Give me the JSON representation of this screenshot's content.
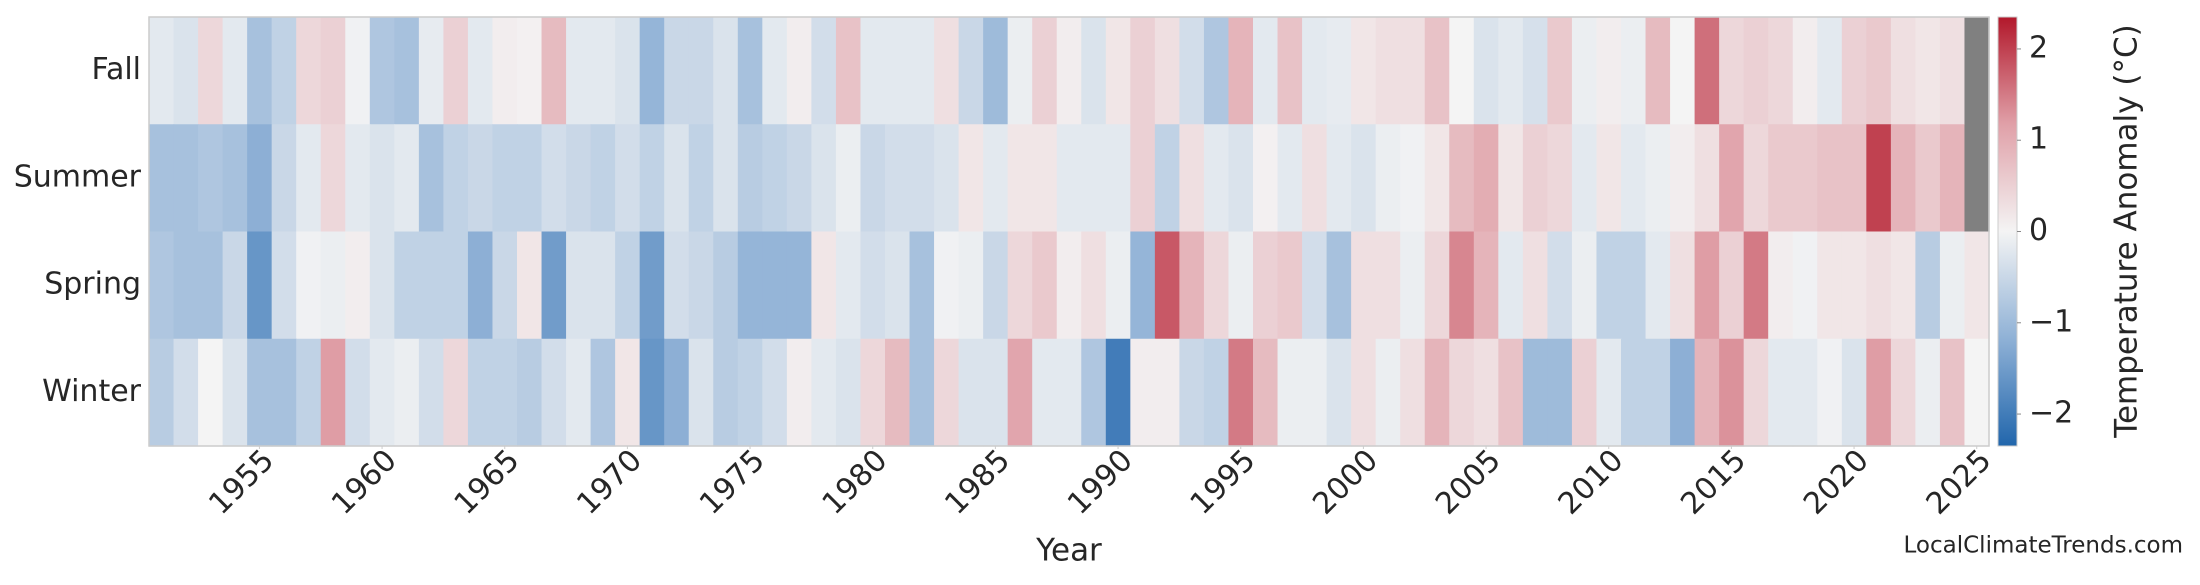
{
  "chart_data": {
    "type": "heatmap",
    "xlabel": "Year",
    "colorbar_label": "Temperature Anomaly (°C)",
    "watermark": "LocalClimateTrends.com",
    "x": [
      1951,
      1952,
      1953,
      1954,
      1955,
      1956,
      1957,
      1958,
      1959,
      1960,
      1961,
      1962,
      1963,
      1964,
      1965,
      1966,
      1967,
      1968,
      1969,
      1970,
      1971,
      1972,
      1973,
      1974,
      1975,
      1976,
      1977,
      1978,
      1979,
      1980,
      1981,
      1982,
      1983,
      1984,
      1985,
      1986,
      1987,
      1988,
      1989,
      1990,
      1991,
      1992,
      1993,
      1994,
      1995,
      1996,
      1997,
      1998,
      1999,
      2000,
      2001,
      2002,
      2003,
      2004,
      2005,
      2006,
      2007,
      2008,
      2009,
      2010,
      2011,
      2012,
      2013,
      2014,
      2015,
      2016,
      2017,
      2018,
      2019,
      2020,
      2021,
      2022,
      2023,
      2024,
      2025
    ],
    "y": [
      "Fall",
      "Summer",
      "Spring",
      "Winter"
    ],
    "z": [
      [
        -0.2,
        -0.3,
        0.4,
        -0.2,
        -0.9,
        -0.6,
        0.4,
        0.5,
        -0.05,
        -0.8,
        -0.9,
        -0.15,
        0.5,
        -0.2,
        0.1,
        0.05,
        0.8,
        -0.2,
        -0.2,
        -0.3,
        -1.1,
        -0.5,
        -0.5,
        -0.3,
        -0.9,
        -0.2,
        0.1,
        -0.4,
        0.7,
        -0.2,
        -0.2,
        -0.2,
        0.3,
        -0.5,
        -1.0,
        -0.1,
        0.5,
        0.1,
        -0.3,
        0.2,
        0.5,
        0.3,
        -0.4,
        -0.8,
        0.9,
        -0.2,
        0.7,
        -0.2,
        -0.15,
        0.2,
        0.3,
        0.3,
        0.7,
        0.0,
        -0.3,
        -0.2,
        -0.35,
        0.6,
        -0.1,
        0.1,
        -0.1,
        0.8,
        0.0,
        1.6,
        0.4,
        0.5,
        0.4,
        0.1,
        -0.2,
        0.5,
        0.6,
        0.3,
        0.2,
        0.3,
        null
      ],
      [
        -0.9,
        -0.9,
        -0.8,
        -0.9,
        -1.2,
        -0.5,
        -0.2,
        0.4,
        -0.2,
        -0.3,
        -0.2,
        -0.9,
        -0.6,
        -0.5,
        -0.6,
        -0.6,
        -0.4,
        -0.5,
        -0.6,
        -0.4,
        -0.6,
        -0.3,
        -0.6,
        -0.3,
        -0.7,
        -0.6,
        -0.5,
        -0.3,
        -0.1,
        -0.5,
        -0.4,
        -0.4,
        -0.3,
        0.2,
        -0.2,
        0.2,
        0.2,
        -0.2,
        -0.2,
        -0.2,
        0.5,
        -0.6,
        0.3,
        -0.2,
        -0.3,
        0.05,
        -0.2,
        0.3,
        -0.2,
        -0.3,
        -0.1,
        -0.05,
        0.2,
        0.8,
        1.0,
        0.2,
        0.5,
        0.4,
        -0.2,
        0.2,
        -0.2,
        -0.1,
        0.1,
        0.3,
        1.1,
        0.4,
        0.6,
        0.6,
        0.7,
        0.7,
        2.0,
        0.9,
        0.6,
        0.9,
        null
      ],
      [
        -0.8,
        -0.9,
        -0.9,
        -0.5,
        -1.6,
        -0.4,
        -0.05,
        -0.1,
        0.1,
        -0.3,
        -0.6,
        -0.6,
        -0.6,
        -1.2,
        -0.5,
        0.2,
        -1.5,
        -0.3,
        -0.3,
        -0.6,
        -1.5,
        -0.4,
        -0.5,
        -0.7,
        -1.1,
        -1.1,
        -1.1,
        0.2,
        -0.2,
        -0.4,
        -0.3,
        -0.9,
        -0.05,
        -0.1,
        -0.5,
        0.4,
        0.6,
        0.1,
        0.3,
        -0.1,
        -1.1,
        1.8,
        0.9,
        0.4,
        -0.1,
        0.5,
        0.6,
        -0.4,
        -0.9,
        0.3,
        0.3,
        -0.1,
        0.4,
        1.4,
        0.9,
        -0.2,
        0.3,
        -0.4,
        -0.1,
        -0.6,
        -0.6,
        -0.2,
        0.3,
        1.2,
        0.5,
        1.5,
        0.1,
        -0.05,
        0.2,
        0.2,
        0.3,
        0.2,
        -0.7,
        -0.1,
        0.2
      ],
      [
        -0.7,
        -0.4,
        0.0,
        -0.3,
        -0.9,
        -0.9,
        -0.6,
        1.2,
        -0.4,
        -0.2,
        -0.1,
        -0.4,
        0.4,
        -0.6,
        -0.6,
        -0.7,
        -0.4,
        -0.2,
        -0.8,
        0.2,
        -1.6,
        -1.2,
        -0.3,
        -0.7,
        -0.6,
        -0.4,
        0.1,
        -0.2,
        -0.3,
        0.4,
        0.8,
        -0.9,
        0.4,
        -0.3,
        -0.3,
        1.1,
        -0.2,
        -0.2,
        -0.8,
        -2.0,
        0.1,
        0.1,
        -0.5,
        -0.6,
        1.5,
        0.8,
        -0.1,
        -0.1,
        -0.3,
        0.3,
        -0.1,
        0.3,
        0.9,
        0.4,
        0.3,
        0.7,
        -1.0,
        -1.0,
        0.5,
        -0.2,
        -0.6,
        -0.6,
        -1.2,
        0.9,
        1.3,
        0.4,
        -0.2,
        -0.2,
        -0.05,
        -0.3,
        1.2,
        0.4,
        -0.1,
        0.7,
        0.0
      ]
    ],
    "xlim": [
      1950.5,
      2025.5
    ],
    "xticks": [
      1955,
      1960,
      1965,
      1970,
      1975,
      1980,
      1985,
      1990,
      1995,
      2000,
      2005,
      2010,
      2015,
      2020,
      2025
    ],
    "clim": [
      -2.35,
      2.35
    ],
    "cticks": [
      {
        "value": -2,
        "label": "−2"
      },
      {
        "value": -1,
        "label": "−1"
      },
      0,
      1,
      2
    ],
    "colormap": [
      "#2166ac",
      "#8fb1d6",
      "#f4f4f4",
      "#e0a0a8",
      "#b2182b"
    ],
    "missing_color": "#808080"
  }
}
